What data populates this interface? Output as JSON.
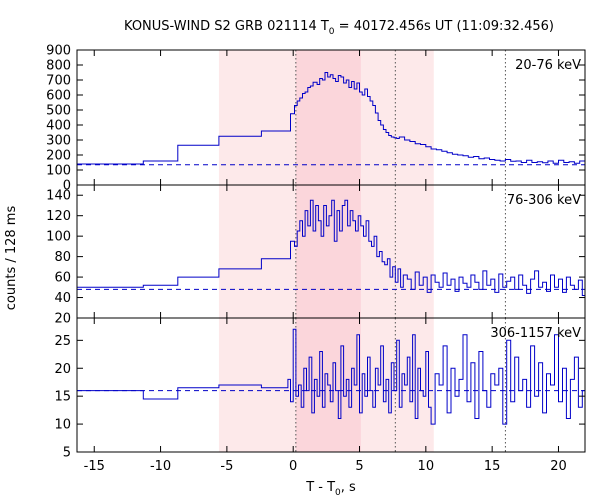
{
  "chart_data": {
    "type": "line",
    "title": {
      "main": "KONUS-WIND S2 GRB 021114 T",
      "sub": "0",
      "rest": " = 40172.456s UT (11:09:32.456)"
    },
    "xlabel": {
      "main": "T - T",
      "sub": "0",
      "rest": ", s"
    },
    "ylabel": "counts / 128 ms",
    "xlim": [
      -16.3,
      22
    ],
    "xticks": [
      -15,
      -10,
      -5,
      0,
      5,
      10,
      15,
      20
    ],
    "xtick_labels": [
      "-15",
      "-10",
      "-5",
      "0",
      "5",
      "10",
      "15",
      "20"
    ],
    "shaded_intervals": [
      {
        "x0": -5.6,
        "x1": 10.6,
        "color": "#fde9ea"
      },
      {
        "x0": 0.2,
        "x1": 5.1,
        "color": "#fbd6db"
      }
    ],
    "vertical_markers": [
      0.2,
      7.7,
      16.0
    ],
    "colors": {
      "line": "#0000c8",
      "background": "#fde9ea",
      "interval": "#fbd6db",
      "marker": "#555555"
    },
    "panels": [
      {
        "label": "20-76 keV",
        "ylim": [
          0,
          900
        ],
        "yticks": [
          0,
          100,
          200,
          300,
          400,
          500,
          600,
          700,
          800,
          900
        ],
        "ytick_labels": [
          "0",
          "100",
          "200",
          "300",
          "400",
          "500",
          "600",
          "700",
          "800",
          "900"
        ],
        "background_level": 135,
        "series": {
          "name": "20-76 keV",
          "x": [
            -16.3,
            -11.3,
            -8.7,
            -5.6,
            -2.4,
            -0.2,
            0.1,
            0.3,
            0.5,
            0.7,
            0.9,
            1.1,
            1.3,
            1.5,
            1.8,
            2.0,
            2.2,
            2.4,
            2.6,
            2.8,
            3.0,
            3.2,
            3.4,
            3.6,
            3.8,
            4.0,
            4.2,
            4.4,
            4.6,
            4.8,
            5.0,
            5.2,
            5.4,
            5.6,
            5.8,
            6.0,
            6.2,
            6.4,
            6.6,
            6.8,
            7.0,
            7.2,
            7.4,
            7.6,
            7.8,
            8.0,
            8.4,
            8.8,
            9.2,
            9.6,
            10.0,
            10.4,
            10.8,
            11.2,
            11.6,
            12.0,
            12.4,
            12.8,
            13.2,
            13.6,
            14.0,
            14.4,
            14.8,
            15.2,
            15.6,
            16.0,
            16.4,
            16.8,
            17.2,
            17.6,
            18.0,
            18.4,
            18.8,
            19.2,
            19.6,
            20.0,
            20.4,
            20.8,
            21.2,
            21.6,
            22.0
          ],
          "y": [
            140,
            160,
            265,
            325,
            360,
            475,
            530,
            560,
            580,
            610,
            620,
            650,
            660,
            685,
            670,
            710,
            700,
            750,
            720,
            735,
            710,
            690,
            730,
            720,
            680,
            700,
            650,
            690,
            640,
            680,
            620,
            600,
            640,
            590,
            560,
            530,
            480,
            430,
            400,
            370,
            350,
            330,
            320,
            315,
            310,
            320,
            300,
            290,
            275,
            270,
            255,
            240,
            235,
            225,
            215,
            205,
            200,
            195,
            185,
            190,
            175,
            180,
            170,
            165,
            160,
            170,
            158,
            160,
            150,
            165,
            150,
            155,
            148,
            160,
            145,
            165,
            150,
            155,
            145,
            160,
            150
          ]
        }
      },
      {
        "label": "76-306 keV",
        "ylim": [
          20,
          150
        ],
        "yticks": [
          20,
          40,
          60,
          80,
          100,
          120,
          140
        ],
        "ytick_labels": [
          "20",
          "40",
          "60",
          "80",
          "100",
          "120",
          "140"
        ],
        "background_level": 48,
        "series": {
          "name": "76-306 keV",
          "x": [
            -16.3,
            -11.3,
            -8.7,
            -5.6,
            -2.4,
            -0.2,
            0.1,
            0.3,
            0.5,
            0.7,
            0.9,
            1.1,
            1.3,
            1.5,
            1.7,
            1.9,
            2.1,
            2.3,
            2.5,
            2.7,
            2.9,
            3.1,
            3.3,
            3.5,
            3.7,
            3.9,
            4.1,
            4.3,
            4.5,
            4.7,
            4.9,
            5.1,
            5.3,
            5.5,
            5.7,
            5.9,
            6.1,
            6.3,
            6.5,
            6.7,
            6.9,
            7.1,
            7.3,
            7.5,
            7.7,
            7.9,
            8.1,
            8.3,
            8.6,
            8.9,
            9.2,
            9.5,
            9.8,
            10.1,
            10.4,
            10.7,
            11.0,
            11.3,
            11.6,
            11.9,
            12.2,
            12.5,
            12.8,
            13.1,
            13.4,
            13.7,
            14.0,
            14.3,
            14.6,
            14.9,
            15.2,
            15.5,
            15.8,
            16.1,
            16.4,
            16.7,
            17.0,
            17.3,
            17.6,
            17.9,
            18.2,
            18.5,
            18.8,
            19.1,
            19.4,
            19.7,
            20.0,
            20.3,
            20.6,
            20.9,
            21.2,
            21.5,
            21.8,
            22.0
          ],
          "y": [
            50,
            52,
            60,
            68,
            78,
            95,
            90,
            105,
            115,
            100,
            125,
            110,
            135,
            105,
            130,
            115,
            100,
            130,
            110,
            120,
            135,
            95,
            125,
            105,
            130,
            135,
            110,
            125,
            115,
            105,
            120,
            110,
            100,
            115,
            95,
            90,
            100,
            80,
            85,
            75,
            72,
            78,
            60,
            70,
            55,
            68,
            50,
            62,
            58,
            48,
            65,
            52,
            60,
            45,
            62,
            55,
            50,
            64,
            52,
            58,
            46,
            60,
            54,
            50,
            62,
            55,
            48,
            66,
            52,
            58,
            45,
            63,
            50,
            56,
            60,
            48,
            62,
            52,
            44,
            58,
            66,
            50,
            55,
            46,
            62,
            50,
            58,
            45,
            60,
            52,
            48,
            57,
            42,
            50
          ]
        }
      },
      {
        "label": "306-1157 keV",
        "ylim": [
          5,
          29
        ],
        "yticks": [
          5,
          10,
          15,
          20,
          25
        ],
        "ytick_labels": [
          "5",
          "10",
          "15",
          "20",
          "25"
        ],
        "background_level": 16,
        "series": {
          "name": "306-1157 keV",
          "x": [
            -16.3,
            -11.3,
            -8.7,
            -5.6,
            -2.4,
            -0.4,
            -0.2,
            0.0,
            0.2,
            0.4,
            0.6,
            0.8,
            1.0,
            1.2,
            1.4,
            1.6,
            1.8,
            2.0,
            2.2,
            2.4,
            2.6,
            2.8,
            3.0,
            3.2,
            3.4,
            3.6,
            3.8,
            4.0,
            4.2,
            4.4,
            4.6,
            4.8,
            5.0,
            5.2,
            5.4,
            5.6,
            5.8,
            6.0,
            6.2,
            6.4,
            6.6,
            6.8,
            7.0,
            7.2,
            7.4,
            7.6,
            7.8,
            8.0,
            8.2,
            8.4,
            8.6,
            8.8,
            9.0,
            9.2,
            9.4,
            9.6,
            9.8,
            10.0,
            10.2,
            10.4,
            10.7,
            11.0,
            11.3,
            11.6,
            11.9,
            12.2,
            12.5,
            12.8,
            13.1,
            13.4,
            13.7,
            14.0,
            14.3,
            14.6,
            14.9,
            15.2,
            15.5,
            15.8,
            16.1,
            16.4,
            16.7,
            17.0,
            17.3,
            17.6,
            17.9,
            18.2,
            18.5,
            18.8,
            19.1,
            19.4,
            19.7,
            20.0,
            20.3,
            20.6,
            20.9,
            21.2,
            21.5,
            21.8,
            22.0
          ],
          "y": [
            16,
            14.5,
            16.5,
            17,
            16.5,
            18,
            14,
            27,
            15,
            17,
            13,
            20,
            16,
            22,
            12,
            18,
            15,
            23,
            13,
            19,
            17,
            14,
            21,
            16,
            11,
            24,
            15,
            18,
            13,
            20,
            17,
            26,
            12,
            19,
            15,
            22,
            16,
            13,
            20,
            17,
            24,
            14,
            18,
            12,
            21,
            16,
            25,
            13,
            19,
            17,
            22,
            14,
            26,
            11,
            20,
            16,
            15,
            23,
            13,
            10,
            19,
            17,
            24,
            12,
            20,
            15,
            18,
            26,
            14,
            21,
            11,
            23,
            16,
            13,
            19,
            17,
            20,
            10,
            25,
            14,
            22,
            16,
            18,
            13,
            24,
            15,
            21,
            12,
            19,
            17,
            26,
            14,
            20,
            11,
            18,
            22,
            13,
            16,
            15
          ]
        }
      }
    ]
  }
}
